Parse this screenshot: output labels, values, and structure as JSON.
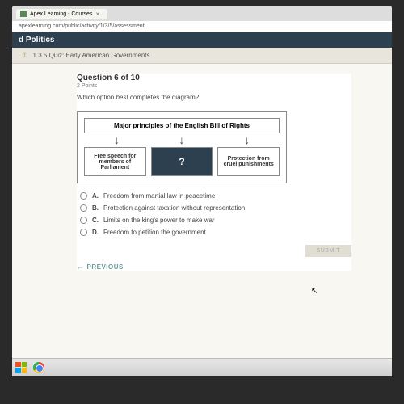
{
  "browser": {
    "tab_title": "Apex Learning - Courses",
    "url": "apexlearning.com/public/activity/1/3/5/assessment"
  },
  "header": {
    "section": "d Politics",
    "breadcrumb": "1.3.5 Quiz: Early American Governments"
  },
  "question": {
    "number": "Question 6 of 10",
    "points": "2 Points",
    "prompt_prefix": "Which option ",
    "prompt_emph": "best",
    "prompt_suffix": " completes the diagram?"
  },
  "diagram": {
    "title": "Major principles of the English Bill of Rights",
    "boxes": {
      "left": "Free speech for members of Parliament",
      "middle": "?",
      "right": "Protection from cruel punishments"
    },
    "colors": {
      "title_bg": "#ffffff",
      "middle_bg": "#2d4050",
      "middle_fg": "#ffffff",
      "border": "#888888",
      "arrow": "#2a4a5a"
    }
  },
  "options": [
    {
      "letter": "A.",
      "text": "Freedom from martial law in peacetime"
    },
    {
      "letter": "B.",
      "text": "Protection against taxation without representation"
    },
    {
      "letter": "C.",
      "text": "Limits on the king's power to make war"
    },
    {
      "letter": "D.",
      "text": "Freedom to petition the government"
    }
  ],
  "buttons": {
    "submit": "SUBMIT",
    "previous": "PREVIOUS"
  }
}
